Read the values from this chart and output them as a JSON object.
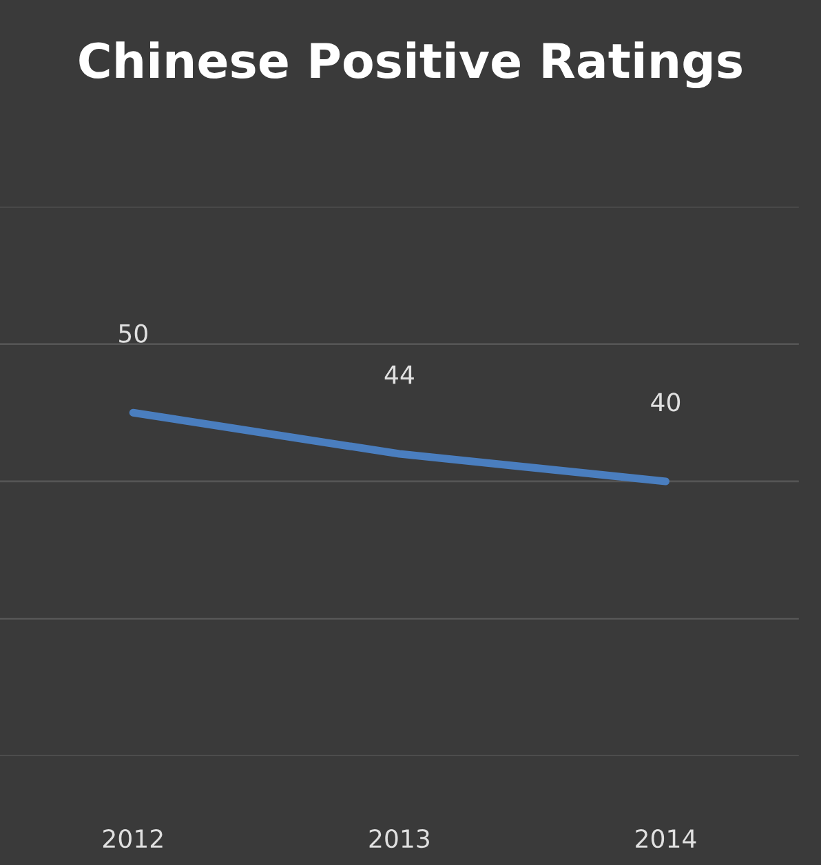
{
  "chart_data": {
    "type": "line",
    "title": "Chinese Positive Ratings",
    "categories": [
      "2012",
      "2013",
      "2014"
    ],
    "series": [
      {
        "color": "#4a7ebf",
        "values": [
          50,
          44,
          40
        ]
      }
    ],
    "ylim": [
      0,
      80
    ],
    "yticks": [
      {
        "value": 0,
        "label": null
      },
      {
        "value": 20,
        "label": null
      },
      {
        "value": 40,
        "label": null
      },
      {
        "value": 60,
        "label": null
      },
      {
        "value": 80,
        "label": null
      }
    ],
    "tick_labels": "x",
    "grid": "y",
    "data_labels": true,
    "marker": "none",
    "line_style": "solid"
  }
}
